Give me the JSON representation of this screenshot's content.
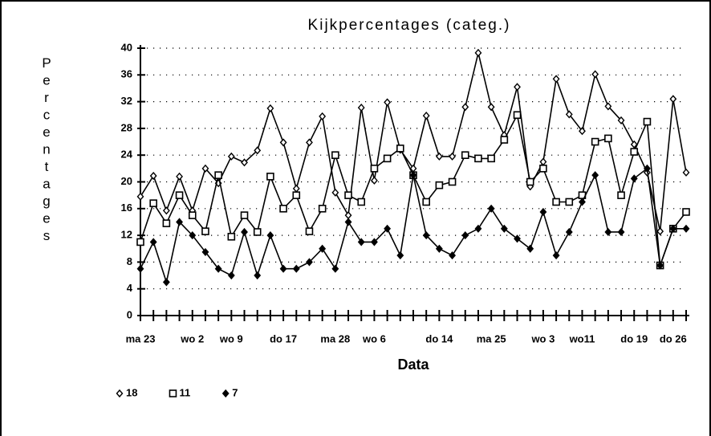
{
  "chart_data": {
    "type": "line",
    "title": "Kijkpercentages   (categ.)",
    "x_label": "Data",
    "y_label": "Percentages",
    "categories": [
      "ma 23",
      null,
      null,
      null,
      "wo 2",
      null,
      null,
      "wo 9",
      null,
      null,
      null,
      "do 17",
      null,
      null,
      null,
      "ma 28",
      null,
      null,
      "wo 6",
      null,
      null,
      null,
      null,
      "do 14",
      null,
      null,
      null,
      "ma 25",
      null,
      null,
      null,
      "wo 3",
      null,
      null,
      "wo11",
      null,
      null,
      null,
      "do 19",
      null,
      null,
      "do 26",
      null
    ],
    "series": [
      {
        "name": "18",
        "color": "#000000",
        "marker": "diamond-open",
        "values": [
          17.8,
          20.9,
          15.7,
          20.8,
          15.7,
          22,
          19.8,
          23.8,
          22.9,
          24.7,
          31,
          25.9,
          19,
          25.9,
          29.8,
          18.4,
          15,
          31.1,
          20.2,
          31.9,
          24.8,
          22,
          29.9,
          23.8,
          23.8,
          31.2,
          39.3,
          31.2,
          27,
          34.2,
          19.3,
          23,
          35.4,
          30.1,
          27.6,
          36.1,
          31.3,
          29.2,
          25.6,
          21.4,
          12.6,
          32.4,
          21.4
        ]
      },
      {
        "name": "11",
        "color": "#000000",
        "marker": "square-open",
        "values": [
          11,
          16.8,
          13.8,
          18,
          15,
          12.6,
          21,
          11.8,
          15,
          12.5,
          20.8,
          16,
          18,
          12.6,
          16,
          24,
          18,
          17,
          22,
          23.5,
          25,
          21,
          17,
          19.5,
          20,
          24,
          23.5,
          23.5,
          26.3,
          30,
          20,
          22,
          17,
          17,
          18,
          26,
          26.5,
          18,
          24.5,
          29,
          7.5,
          13,
          15.5
        ]
      },
      {
        "name": "7",
        "color": "#000000",
        "marker": "diamond-filled",
        "values": [
          7,
          11,
          5,
          14,
          12,
          9.5,
          7,
          6,
          12.5,
          6,
          12,
          7,
          7,
          8,
          10,
          7,
          14,
          11,
          11,
          13,
          9,
          21,
          12,
          10,
          9,
          12,
          13,
          16,
          13,
          11.5,
          10,
          15.5,
          9,
          12.5,
          17,
          21,
          12.5,
          12.5,
          20.5,
          22,
          7.5,
          13,
          13
        ]
      }
    ],
    "ylim": [
      0,
      40
    ],
    "yticks": [
      0,
      4,
      8,
      12,
      16,
      20,
      24,
      28,
      32,
      36,
      40
    ],
    "grid": true
  }
}
